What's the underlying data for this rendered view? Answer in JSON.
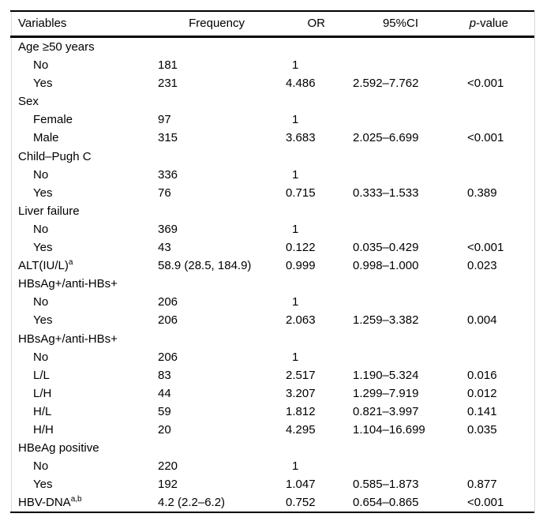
{
  "colors": {
    "background": "#ffffff",
    "text": "#000000",
    "rule": "#000000",
    "side_line": "#d9d9d9"
  },
  "table": {
    "columns": {
      "variables": "Variables",
      "frequency": "Frequency",
      "or": "OR",
      "ci": "95%CI",
      "pvalue_italic": "p",
      "pvalue_rest": "-value"
    },
    "rows": [
      {
        "label": "Age ≥50 years",
        "sup": "",
        "indent": false,
        "frequency": "",
        "or": "",
        "ci": "",
        "p": ""
      },
      {
        "label": "No",
        "sup": "",
        "indent": true,
        "frequency": "181",
        "or": "1",
        "ci": "",
        "p": ""
      },
      {
        "label": "Yes",
        "sup": "",
        "indent": true,
        "frequency": "231",
        "or": "4.486",
        "ci": "2.592–7.762",
        "p": "<0.001"
      },
      {
        "label": "Sex",
        "sup": "",
        "indent": false,
        "frequency": "",
        "or": "",
        "ci": "",
        "p": ""
      },
      {
        "label": "Female",
        "sup": "",
        "indent": true,
        "frequency": "97",
        "or": "1",
        "ci": "",
        "p": ""
      },
      {
        "label": "Male",
        "sup": "",
        "indent": true,
        "frequency": "315",
        "or": "3.683",
        "ci": "2.025–6.699",
        "p": "<0.001"
      },
      {
        "label": "Child–Pugh C",
        "sup": "",
        "indent": false,
        "frequency": "",
        "or": "",
        "ci": "",
        "p": ""
      },
      {
        "label": "No",
        "sup": "",
        "indent": true,
        "frequency": "336",
        "or": "1",
        "ci": "",
        "p": ""
      },
      {
        "label": "Yes",
        "sup": "",
        "indent": true,
        "frequency": "76",
        "or": "0.715",
        "ci": "0.333–1.533",
        "p": "0.389"
      },
      {
        "label": "Liver failure",
        "sup": "",
        "indent": false,
        "frequency": "",
        "or": "",
        "ci": "",
        "p": ""
      },
      {
        "label": "No",
        "sup": "",
        "indent": true,
        "frequency": "369",
        "or": "1",
        "ci": "",
        "p": ""
      },
      {
        "label": "Yes",
        "sup": "",
        "indent": true,
        "frequency": "43",
        "or": "0.122",
        "ci": "0.035–0.429",
        "p": "<0.001"
      },
      {
        "label": "ALT(IU/L)",
        "sup": "a",
        "indent": false,
        "frequency": "58.9 (28.5, 184.9)",
        "or": "0.999",
        "ci": "0.998–1.000",
        "p": "0.023"
      },
      {
        "label": "HBsAg+/anti-HBs+",
        "sup": "",
        "indent": false,
        "frequency": "",
        "or": "",
        "ci": "",
        "p": ""
      },
      {
        "label": "No",
        "sup": "",
        "indent": true,
        "frequency": "206",
        "or": "1",
        "ci": "",
        "p": ""
      },
      {
        "label": "Yes",
        "sup": "",
        "indent": true,
        "frequency": "206",
        "or": "2.063",
        "ci": "1.259–3.382",
        "p": "0.004"
      },
      {
        "label": "HBsAg+/anti-HBs+",
        "sup": "",
        "indent": false,
        "frequency": "",
        "or": "",
        "ci": "",
        "p": ""
      },
      {
        "label": "No",
        "sup": "",
        "indent": true,
        "frequency": "206",
        "or": "1",
        "ci": "",
        "p": ""
      },
      {
        "label": "L/L",
        "sup": "",
        "indent": true,
        "frequency": "83",
        "or": "2.517",
        "ci": "1.190–5.324",
        "p": "0.016"
      },
      {
        "label": "L/H",
        "sup": "",
        "indent": true,
        "frequency": "44",
        "or": "3.207",
        "ci": "1.299–7.919",
        "p": "0.012"
      },
      {
        "label": "H/L",
        "sup": "",
        "indent": true,
        "frequency": "59",
        "or": "1.812",
        "ci": "0.821–3.997",
        "p": "0.141"
      },
      {
        "label": "H/H",
        "sup": "",
        "indent": true,
        "frequency": "20",
        "or": "4.295",
        "ci": "1.104–16.699",
        "p": "0.035"
      },
      {
        "label": "HBeAg positive",
        "sup": "",
        "indent": false,
        "frequency": "",
        "or": "",
        "ci": "",
        "p": ""
      },
      {
        "label": "No",
        "sup": "",
        "indent": true,
        "frequency": "220",
        "or": "1",
        "ci": "",
        "p": ""
      },
      {
        "label": "Yes",
        "sup": "",
        "indent": true,
        "frequency": "192",
        "or": "1.047",
        "ci": "0.585–1.873",
        "p": "0.877"
      },
      {
        "label": "HBV-DNA",
        "sup": "a,b",
        "indent": false,
        "frequency": "4.2 (2.2–6.2)",
        "or": "0.752",
        "ci": "0.654–0.865",
        "p": "<0.001"
      }
    ]
  }
}
